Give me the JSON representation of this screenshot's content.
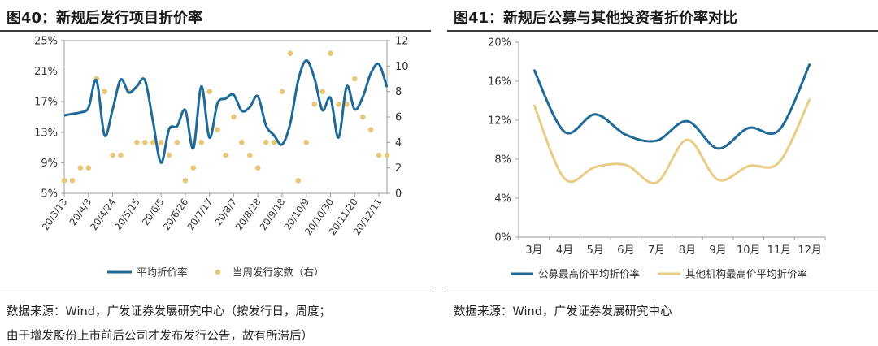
{
  "left": {
    "title": "图40：新规后发行项目折价率",
    "source_lines": [
      "数据来源：Wind，广发证券发展研究中心（按发行日，周度；",
      "由于增发股份上市前后公司才发布发行公告，故有所滞后）"
    ],
    "chart_data": {
      "type": "line+scatter",
      "title": "",
      "y_left_ticks": [
        "25%",
        "21%",
        "17%",
        "13%",
        "9%",
        "5%"
      ],
      "y_left_range": [
        5,
        25
      ],
      "y_right_ticks": [
        "12",
        "10",
        "8",
        "6",
        "4",
        "2",
        "0"
      ],
      "y_right_range": [
        0,
        12
      ],
      "x_tick_labels": [
        "20/3/13",
        "20/4/3",
        "20/4/24",
        "20/5/15",
        "20/6/5",
        "20/6/26",
        "20/7/17",
        "20/8/7",
        "20/8/28",
        "20/9/18",
        "20/10/9",
        "20/10/30",
        "20/11/20",
        "20/12/11"
      ],
      "x_tick_week_index": [
        0,
        3,
        6,
        9,
        12,
        15,
        18,
        21,
        24,
        27,
        30,
        33,
        36,
        39
      ],
      "weeks": 41,
      "line_series": {
        "name": "平均折价率",
        "axis": "left",
        "values": [
          15.2,
          15.4,
          15.6,
          16.2,
          19.8,
          12.6,
          16.0,
          19.9,
          18.2,
          19.0,
          19.8,
          14.4,
          9.0,
          13.4,
          13.8,
          15.9,
          10.9,
          19.0,
          12.3,
          16.8,
          17.4,
          17.9,
          15.8,
          16.3,
          17.7,
          13.9,
          12.6,
          11.4,
          14.1,
          19.8,
          22.4,
          20.1,
          15.9,
          17.5,
          12.3,
          19.0,
          16.0,
          17.6,
          20.7,
          21.9,
          18.9
        ]
      },
      "scatter_series": {
        "name": "当周发行家数（右）",
        "axis": "right",
        "points": [
          [
            0,
            1
          ],
          [
            1,
            1
          ],
          [
            2,
            2
          ],
          [
            3,
            2
          ],
          [
            4,
            9
          ],
          [
            5,
            8
          ],
          [
            6,
            3
          ],
          [
            7,
            3
          ],
          [
            8,
            8
          ],
          [
            9,
            4
          ],
          [
            10,
            4
          ],
          [
            11,
            4
          ],
          [
            12,
            4
          ],
          [
            13,
            3
          ],
          [
            14,
            4
          ],
          [
            15,
            1
          ],
          [
            16,
            2
          ],
          [
            17,
            4
          ],
          [
            18,
            8
          ],
          [
            19,
            5
          ],
          [
            20,
            3
          ],
          [
            21,
            6
          ],
          [
            22,
            4
          ],
          [
            23,
            3
          ],
          [
            24,
            2
          ],
          [
            25,
            4
          ],
          [
            26,
            4
          ],
          [
            27,
            8
          ],
          [
            28,
            11
          ],
          [
            29,
            1
          ],
          [
            30,
            4
          ],
          [
            31,
            7
          ],
          [
            32,
            8
          ],
          [
            33,
            11
          ],
          [
            34,
            7
          ],
          [
            35,
            7
          ],
          [
            36,
            9
          ],
          [
            37,
            6
          ],
          [
            38,
            5
          ],
          [
            39,
            3
          ],
          [
            40,
            3
          ]
        ]
      },
      "legend": [
        "平均折价率",
        "当周发行家数（右）"
      ],
      "legend_position": "bottom",
      "colors": {
        "line": "#1f6a96",
        "scatter": "#e6c77a"
      }
    }
  },
  "right": {
    "title": "图41：新规后公募与其他投资者折价率对比",
    "source_lines": [
      "数据来源：Wind，广发证券发展研究中心"
    ],
    "chart_data": {
      "type": "line",
      "title": "",
      "categories": [
        "3月",
        "4月",
        "5月",
        "6月",
        "7月",
        "8月",
        "9月",
        "10月",
        "11月",
        "12月"
      ],
      "y_ticks": [
        "20%",
        "16%",
        "12%",
        "8%",
        "4%",
        "0%"
      ],
      "ylim": [
        0,
        20
      ],
      "series": [
        {
          "name": "公募最高价平均折价率",
          "values": [
            17.2,
            10.8,
            12.6,
            10.5,
            9.9,
            11.9,
            9.1,
            11.2,
            11.0,
            17.8
          ],
          "color": "#1f6a96"
        },
        {
          "name": "其他机构最高价平均折价率",
          "values": [
            13.6,
            6.0,
            7.2,
            7.4,
            5.6,
            10.0,
            5.9,
            7.3,
            7.7,
            14.2
          ],
          "color": "#e9cc86"
        }
      ],
      "legend_position": "bottom"
    }
  }
}
